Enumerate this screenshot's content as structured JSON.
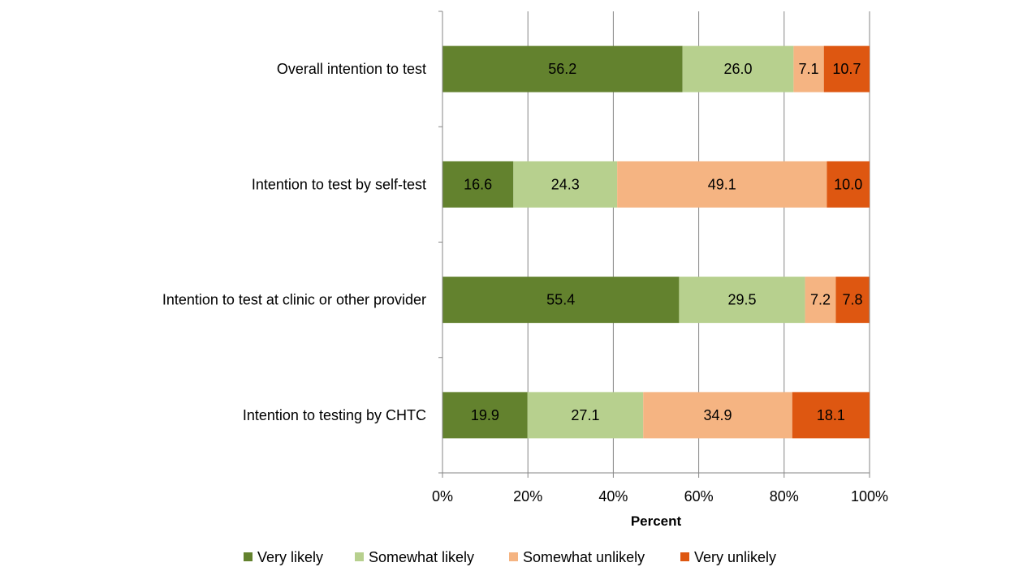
{
  "chart_data": {
    "type": "bar",
    "orientation": "horizontal",
    "stacked": true,
    "categories": [
      "Overall intention to test",
      "Intention to test by self-test",
      "Intention to test at clinic or other provider",
      "Intention to testing by CHTC"
    ],
    "series": [
      {
        "name": "Very likely",
        "color": "#63822E",
        "values": [
          56.2,
          16.6,
          55.4,
          19.9
        ]
      },
      {
        "name": "Somewhat likely",
        "color": "#B7D08E",
        "values": [
          26.0,
          24.3,
          29.5,
          27.1
        ]
      },
      {
        "name": "Somewhat unlikely",
        "color": "#F5B482",
        "values": [
          7.1,
          49.1,
          7.2,
          34.9
        ]
      },
      {
        "name": "Very unlikely",
        "color": "#DE5711",
        "values": [
          10.7,
          10.0,
          7.8,
          18.1
        ]
      }
    ],
    "value_labels": [
      [
        "56.2",
        "26.0",
        "7.1",
        "10.7"
      ],
      [
        "16.6",
        "24.3",
        "49.1",
        "10.0"
      ],
      [
        "55.4",
        "29.5",
        "7.2",
        "7.8"
      ],
      [
        "19.9",
        "27.1",
        "34.9",
        "18.1"
      ]
    ],
    "xticks": [
      "0%",
      "20%",
      "40%",
      "60%",
      "80%",
      "100%"
    ],
    "xlim": [
      0,
      100
    ],
    "xlabel": "Percent",
    "ylabel": "",
    "title": "",
    "grid": "vertical",
    "legend": "bottom"
  }
}
